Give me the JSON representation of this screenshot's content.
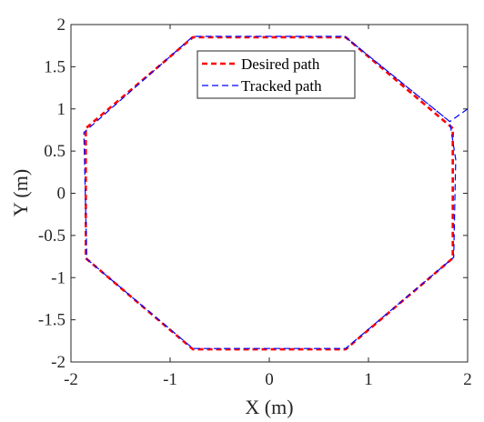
{
  "chart_data": {
    "type": "line",
    "xlabel": "X (m)",
    "ylabel": "Y (m)",
    "xlim": [
      -2,
      2
    ],
    "ylim": [
      -2,
      2
    ],
    "x_ticks": [
      -2,
      -1,
      0,
      1,
      2
    ],
    "y_ticks": [
      -2,
      -1.5,
      -1,
      -0.5,
      0,
      0.5,
      1,
      1.5,
      2
    ],
    "x_tick_labels": [
      "-2",
      "-1",
      "0",
      "1",
      "2"
    ],
    "y_tick_labels": [
      "-2",
      "-1.5",
      "-1",
      "-0.5",
      "0",
      "0.5",
      "1",
      "1.5",
      "2"
    ],
    "grid": false,
    "legend": {
      "position": "top-center"
    },
    "series": [
      {
        "name": "Desired path",
        "color": "#ff0000",
        "style": "dashed",
        "x": [
          1.85,
          0.77,
          -0.77,
          -1.85,
          -1.85,
          -0.77,
          0.77,
          1.85,
          1.85
        ],
        "y": [
          0.77,
          1.85,
          1.85,
          0.77,
          -0.77,
          -1.85,
          -1.85,
          -0.77,
          0.77
        ]
      },
      {
        "name": "Tracked path",
        "color": "#0000ff",
        "style": "dashed",
        "x": [
          2.0,
          1.82,
          0.76,
          -0.77,
          -1.87,
          -1.84,
          -0.77,
          0.77,
          1.86,
          1.88,
          1.82,
          0.76
        ],
        "y": [
          1.0,
          0.85,
          1.86,
          1.86,
          0.72,
          -0.78,
          -1.84,
          -1.84,
          -0.76,
          0.4,
          0.85,
          1.86
        ]
      }
    ]
  }
}
